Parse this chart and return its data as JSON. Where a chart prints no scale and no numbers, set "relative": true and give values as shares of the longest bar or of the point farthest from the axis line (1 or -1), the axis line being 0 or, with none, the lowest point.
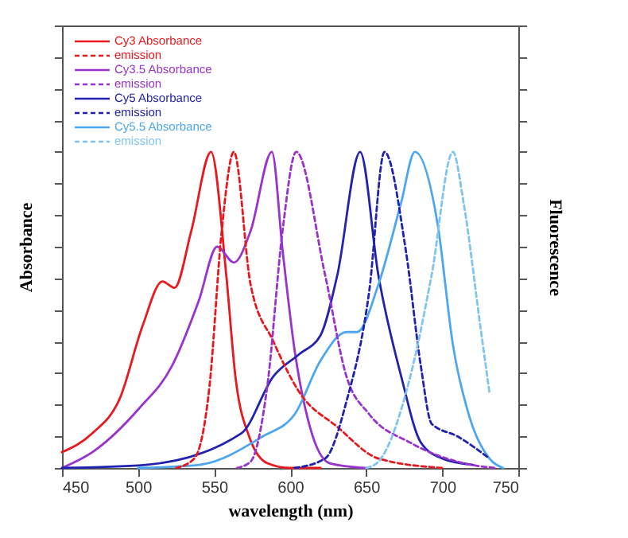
{
  "chart_data": {
    "type": "line",
    "relative": true,
    "xlabel": "wavelength (nm)",
    "ylabel": "Absorbance",
    "y2label": "Fluorescence",
    "xlim": [
      450,
      750
    ],
    "xticks": [
      450,
      500,
      550,
      600,
      650,
      700,
      750
    ],
    "legend": "top left",
    "series": [
      {
        "name": "Cy3 Absorbance",
        "color": "#e8191e",
        "line_style": "solid",
        "x": [
          450,
          470,
          488,
          503,
          516,
          524,
          535,
          548,
          558,
          564,
          573,
          585,
          600,
          620
        ],
        "values": [
          0.05,
          0.11,
          0.22,
          0.45,
          0.59,
          0.57,
          0.75,
          1,
          0.61,
          0.29,
          0.1,
          0.015,
          0,
          0
        ]
      },
      {
        "name": "emission",
        "color": "#e8191e",
        "line_style": "dashed",
        "axis": "y2",
        "x": [
          525,
          537,
          547,
          555,
          563,
          574,
          589,
          606,
          631,
          658,
          700
        ],
        "values": [
          0,
          0.03,
          0.26,
          0.75,
          1,
          0.58,
          0.4,
          0.24,
          0.13,
          0.03,
          0
        ]
      },
      {
        "name": "Cy3.5 Absorbance",
        "color": "#9933cc",
        "line_style": "solid",
        "x": [
          450,
          470,
          501,
          522,
          540,
          552,
          563,
          574,
          588,
          595,
          603,
          613,
          626,
          650
        ],
        "values": [
          0,
          0.05,
          0.19,
          0.32,
          0.53,
          0.7,
          0.65,
          0.75,
          1,
          0.69,
          0.37,
          0.13,
          0.015,
          0
        ]
      },
      {
        "name": "emission",
        "color": "#9933cc",
        "line_style": "dashed",
        "axis": "y2",
        "x": [
          565,
          574,
          585,
          595,
          604,
          623,
          637,
          652,
          679,
          714,
          735
        ],
        "values": [
          0,
          0.02,
          0.26,
          0.75,
          1,
          0.61,
          0.29,
          0.17,
          0.08,
          0.015,
          0
        ]
      },
      {
        "name": "Cy5 Absorbance",
        "color": "#2222b0",
        "line_style": "solid",
        "x": [
          450,
          505,
          568,
          589,
          606,
          620,
          631,
          646,
          658,
          673,
          686,
          700,
          720
        ],
        "values": [
          0,
          0.01,
          0.11,
          0.29,
          0.36,
          0.42,
          0.61,
          1,
          0.61,
          0.29,
          0.08,
          0.03,
          0.01
        ]
      },
      {
        "name": "emission",
        "color": "#2222b0",
        "line_style": "dashed",
        "axis": "y2",
        "x": [
          603,
          623,
          637,
          652,
          662,
          676,
          686,
          693,
          710,
          731
        ],
        "values": [
          0,
          0.03,
          0.21,
          0.56,
          1,
          0.69,
          0.32,
          0.14,
          0.1,
          0.03
        ]
      },
      {
        "name": "Cy5.5 Absorbance",
        "color": "#4da6f0",
        "line_style": "solid",
        "x": [
          500,
          540,
          582,
          603,
          620,
          637,
          644,
          658,
          673,
          682,
          697,
          707,
          718,
          731,
          740
        ],
        "values": [
          0,
          0.01,
          0.1,
          0.17,
          0.34,
          0.43,
          0.43,
          0.58,
          0.84,
          1,
          0.77,
          0.39,
          0.16,
          0.03,
          0
        ]
      },
      {
        "name": "emission",
        "color": "#80c4f0",
        "line_style": "dashed",
        "axis": "y2",
        "x": [
          650,
          658,
          679,
          693,
          707,
          714,
          725,
          731
        ],
        "values": [
          0,
          0.02,
          0.29,
          0.61,
          1,
          0.84,
          0.45,
          0.24
        ]
      }
    ]
  }
}
